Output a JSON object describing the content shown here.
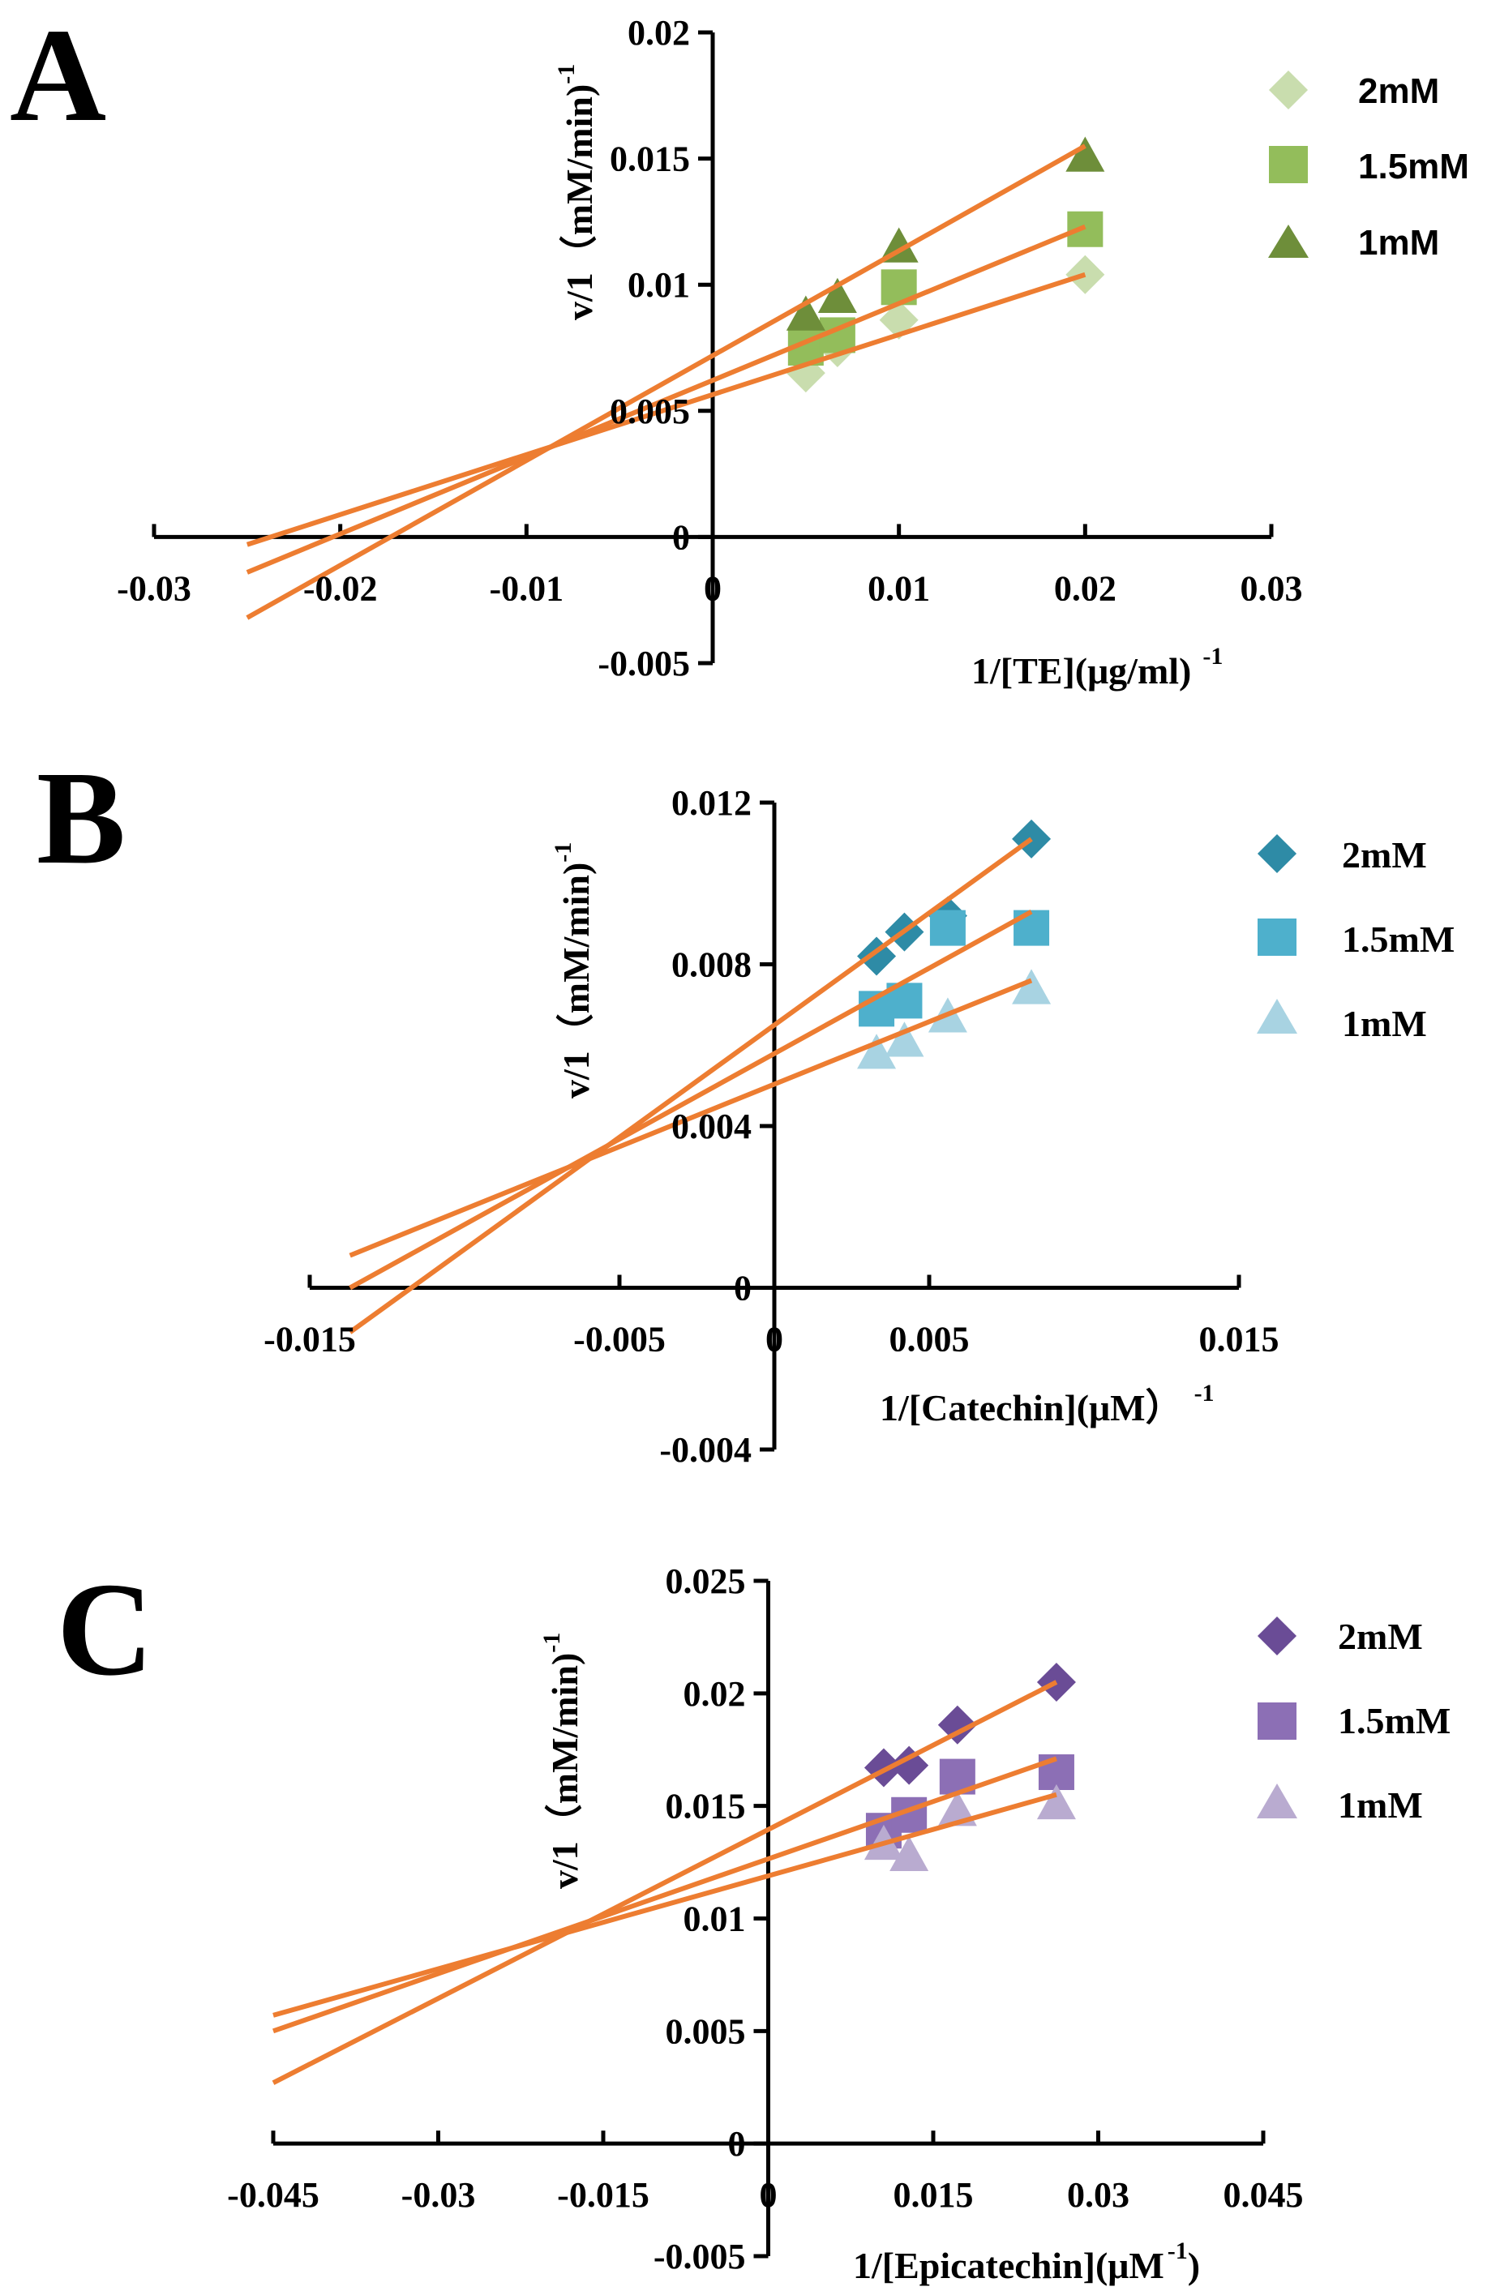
{
  "chart_data": [
    {
      "panel": "A",
      "type": "scatter",
      "xlabel": "1/[TE](μg/ml)",
      "xlabel_exp": "-1",
      "ylabel": "v/1（mM/min)",
      "ylabel_exp": "-1",
      "xlim": [
        -0.03,
        0.03
      ],
      "ylim": [
        -0.005,
        0.02
      ],
      "xticks": [
        -0.03,
        -0.02,
        -0.01,
        0,
        0.01,
        0.02,
        0.03
      ],
      "xtick_labels": [
        "-0.03",
        "-0.02",
        "-0.01",
        "0",
        "0.01",
        "0.02",
        "0.03"
      ],
      "yticks": [
        -0.005,
        0,
        0.005,
        0.01,
        0.015,
        0.02
      ],
      "ytick_labels": [
        "-0.005",
        "0",
        "0.005",
        "0.01",
        "0.015",
        "0.02"
      ],
      "series": [
        {
          "name": "2mM",
          "marker": "diamond",
          "color": "#C9DDAE",
          "x": [
            0.005,
            0.0067,
            0.01,
            0.02
          ],
          "y": [
            0.0065,
            0.0075,
            0.0086,
            0.0104
          ],
          "fit": [
            [
              -0.025,
              -0.0003
            ],
            [
              0.02,
              0.0104
            ]
          ]
        },
        {
          "name": "1.5mM",
          "marker": "square",
          "color": "#93BD5B",
          "x": [
            0.005,
            0.0067,
            0.01,
            0.02
          ],
          "y": [
            0.0075,
            0.008,
            0.0099,
            0.0122
          ],
          "fit": [
            [
              -0.025,
              -0.0014
            ],
            [
              0.02,
              0.0123
            ]
          ]
        },
        {
          "name": "1mM",
          "marker": "triangle",
          "color": "#6E8E3A",
          "x": [
            0.005,
            0.0067,
            0.01,
            0.02
          ],
          "y": [
            0.0088,
            0.0095,
            0.0115,
            0.0151
          ],
          "fit": [
            [
              -0.025,
              -0.0032
            ],
            [
              0.02,
              0.0155
            ]
          ]
        }
      ]
    },
    {
      "panel": "B",
      "type": "scatter",
      "xlabel": "1/[Catechin](μM）",
      "xlabel_exp": "-1",
      "ylabel": "v/1（mM/min)",
      "ylabel_exp": "-1",
      "xlim": [
        -0.015,
        0.015
      ],
      "ylim": [
        -0.004,
        0.012
      ],
      "xticks": [
        -0.015,
        -0.005,
        0.005,
        0.015
      ],
      "xtick_labels": [
        "-0.015",
        "-0.005",
        "0.005",
        "0.015"
      ],
      "xzero_label": "0",
      "yticks": [
        -0.004,
        0,
        0.004,
        0.008,
        0.012
      ],
      "ytick_labels": [
        "-0.004",
        "0",
        "0.004",
        "0.008",
        "0.012"
      ],
      "series": [
        {
          "name": "2mM",
          "marker": "diamond",
          "color": "#2E8BA6",
          "x": [
            0.0033,
            0.0042,
            0.0056,
            0.0083
          ],
          "y": [
            0.0082,
            0.0088,
            0.0092,
            0.0111
          ],
          "fit": [
            [
              -0.0137,
              -0.0011
            ],
            [
              0.0083,
              0.0111
            ]
          ]
        },
        {
          "name": "1.5mM",
          "marker": "square",
          "color": "#4EB0CC",
          "x": [
            0.0033,
            0.0042,
            0.0056,
            0.0083
          ],
          "y": [
            0.0069,
            0.0071,
            0.0089,
            0.0089
          ],
          "fit": [
            [
              -0.0137,
              0.0
            ],
            [
              0.0083,
              0.0093
            ]
          ]
        },
        {
          "name": "1mM",
          "marker": "triangle",
          "color": "#A8D3E2",
          "x": [
            0.0033,
            0.0042,
            0.0056,
            0.0083
          ],
          "y": [
            0.0058,
            0.0061,
            0.0067,
            0.0074
          ],
          "fit": [
            [
              -0.0137,
              0.0008
            ],
            [
              0.0083,
              0.0076
            ]
          ]
        }
      ]
    },
    {
      "panel": "C",
      "type": "scatter",
      "xlabel": "1/[Epicatechin](μM",
      "xlabel_exp": "-1",
      "xlabel_tail": ")",
      "ylabel": "v/1（mM/min)",
      "ylabel_exp": "-1",
      "xlim": [
        -0.045,
        0.045
      ],
      "ylim": [
        -0.005,
        0.025
      ],
      "xticks": [
        -0.045,
        -0.03,
        -0.015,
        0.015,
        0.03,
        0.045
      ],
      "xtick_labels": [
        "-0.045",
        "-0.03",
        "-0.015",
        "0.015",
        "0.03",
        "0.045"
      ],
      "xzero_label": "0",
      "yticks": [
        -0.005,
        0,
        0.005,
        0.01,
        0.015,
        0.02,
        0.025
      ],
      "ytick_labels": [
        "-0.005",
        "0",
        "0.005",
        "0.01",
        "0.015",
        "0.02",
        "0.025"
      ],
      "series": [
        {
          "name": "2mM",
          "marker": "diamond",
          "color": "#6A4C96",
          "x": [
            0.0105,
            0.0128,
            0.0172,
            0.0262
          ],
          "y": [
            0.0167,
            0.0168,
            0.0186,
            0.0205
          ],
          "fit": [
            [
              -0.045,
              0.0027
            ],
            [
              0.0262,
              0.0205
            ]
          ]
        },
        {
          "name": "1.5mM",
          "marker": "square",
          "color": "#8C6FB5",
          "x": [
            0.0105,
            0.0128,
            0.0172,
            0.0262
          ],
          "y": [
            0.0139,
            0.0146,
            0.0163,
            0.0165
          ],
          "fit": [
            [
              -0.045,
              0.005
            ],
            [
              0.0262,
              0.0171
            ]
          ]
        },
        {
          "name": "1mM",
          "marker": "triangle",
          "color": "#B9ABD0",
          "x": [
            0.0105,
            0.0128,
            0.0172,
            0.0262
          ],
          "y": [
            0.0133,
            0.0128,
            0.0148,
            0.0151
          ],
          "fit": [
            [
              -0.045,
              0.0057
            ],
            [
              0.0262,
              0.0155
            ]
          ]
        }
      ]
    }
  ],
  "fit_line_color": "#ED7D31",
  "axis_color": "#000000"
}
